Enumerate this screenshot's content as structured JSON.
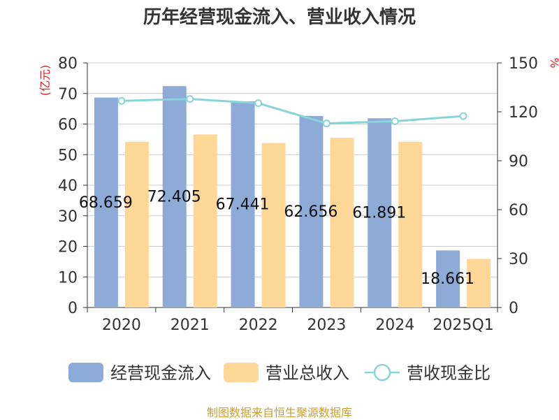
{
  "chart_data": {
    "type": "bar",
    "title": "历年经营现金流入、营业收入情况",
    "categories": [
      "2020",
      "2021",
      "2022",
      "2023",
      "2024",
      "2025Q1"
    ],
    "series": [
      {
        "name": "经营现金流入",
        "kind": "bar",
        "axis": "left",
        "color": "#8eabd8",
        "values": [
          68.659,
          72.405,
          67.441,
          62.656,
          61.891,
          18.661
        ],
        "labels": [
          "68.659",
          "72.405",
          "67.441",
          "62.656",
          "61.891",
          "18.661"
        ]
      },
      {
        "name": "营业总收入",
        "kind": "bar",
        "axis": "left",
        "color": "#ffd897",
        "values": [
          54.2,
          56.6,
          53.8,
          55.5,
          54.2,
          15.9
        ]
      },
      {
        "name": "营收现金比",
        "kind": "line",
        "axis": "right",
        "color": "#88d4d8",
        "values": [
          126.7,
          127.9,
          125.3,
          112.9,
          114.2,
          117.4
        ]
      }
    ],
    "y_left": {
      "unit": "(亿元)",
      "ylim": [
        0,
        80
      ],
      "ticks": [
        "0",
        "10",
        "20",
        "30",
        "40",
        "50",
        "60",
        "70",
        "80"
      ]
    },
    "y_right": {
      "unit": "%",
      "ylim": [
        0,
        150
      ],
      "ticks": [
        "0",
        "30",
        "60",
        "90",
        "120",
        "150"
      ]
    },
    "grid": true,
    "legend_position": "bottom"
  },
  "colors": {
    "unit_label": "#e02020",
    "axis": "#333333",
    "grid": "#cccccc",
    "footer": "#c8a032"
  },
  "footer": "制图数据来自恒生聚源数据库"
}
